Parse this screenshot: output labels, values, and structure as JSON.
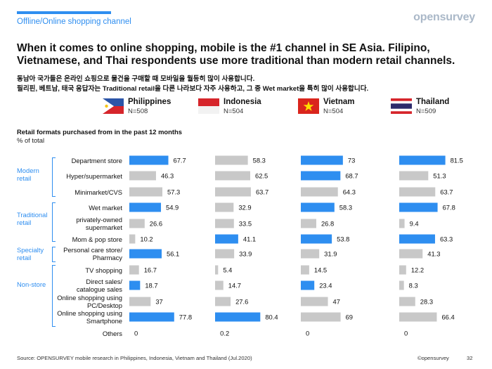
{
  "header": {
    "section": "Offline/Online shopping channel",
    "logo": "opensurvey",
    "headline": "When it comes to online shopping, mobile is the #1 channel in SE Asia. Filipino, Vietnamese, and Thai respondents use more traditional than modern retail channels.",
    "sub_line1": "동남아 국가들은 온라인 쇼핑으로 물건을 구매할 때 모바일을 월등히 많이 사용합니다.",
    "sub_line2": "필리핀, 베트남, 태국 응답자는 Traditional retail을 다른 나라보다 자주 사용하고, 그 중 Wet market을 특히 많이 사용합니다."
  },
  "countries": [
    {
      "name": "Philippines",
      "n": "N=508",
      "flag": "philippines-flag"
    },
    {
      "name": "Indonesia",
      "n": "N=504",
      "flag": "indonesia-flag"
    },
    {
      "name": "Vietnam",
      "n": "N=504",
      "flag": "vietnam-flag"
    },
    {
      "name": "Thailand",
      "n": "N=509",
      "flag": "thailand-flag"
    }
  ],
  "colors": {
    "accent": "#2e8ef0",
    "gray": "#c8c8c8"
  },
  "chart_data": {
    "type": "bar",
    "title": "Retail formats purchased from in the past 12 months",
    "subtitle": "% of total",
    "orientation": "horizontal",
    "groups": [
      {
        "label": "Modern retail",
        "rows": [
          0,
          1,
          2
        ]
      },
      {
        "label": "Traditional retail",
        "rows": [
          3,
          4,
          5
        ]
      },
      {
        "label": "Specialty retail",
        "rows": [
          6
        ]
      },
      {
        "label": "Non-store",
        "rows": [
          7,
          8,
          9,
          10,
          11
        ]
      }
    ],
    "categories": [
      "Department store",
      "Hyper/supermarket",
      "Minimarket/CVS",
      "Wet market",
      "privately-owned supermarket",
      "Mom & pop store",
      "Personal care store/ Pharmacy",
      "TV shopping",
      "Direct sales/ catalogue sales",
      "Online shopping using PC/Desktop",
      "Online shopping using Smartphone",
      "Others"
    ],
    "category_lines": [
      [
        "Department store"
      ],
      [
        "Hyper/supermarket"
      ],
      [
        "Minimarket/CVS"
      ],
      [
        "Wet market"
      ],
      [
        "privately-owned",
        "supermarket"
      ],
      [
        "Mom & pop store"
      ],
      [
        "Personal care store/",
        "Pharmacy"
      ],
      [
        "TV shopping"
      ],
      [
        "Direct sales/",
        "catalogue sales"
      ],
      [
        "Online shopping using",
        "PC/Desktop"
      ],
      [
        "Online shopping using",
        "Smartphone"
      ],
      [
        "Others"
      ]
    ],
    "series": [
      {
        "name": "Philippines",
        "values": [
          67.7,
          46.3,
          57.3,
          54.9,
          26.6,
          10.2,
          56.1,
          16.7,
          18.7,
          37,
          77.8,
          0
        ],
        "labels": [
          "67.7",
          "46.3",
          "57.3",
          "54.9",
          "26.6",
          "10.2",
          "56.1",
          "16.7",
          "18.7",
          "37",
          "77.8",
          "0"
        ],
        "highlight": [
          0,
          3,
          6,
          8,
          10
        ]
      },
      {
        "name": "Indonesia",
        "values": [
          58.3,
          62.5,
          63.7,
          32.9,
          33.5,
          41.1,
          33.9,
          5.4,
          14.7,
          27.6,
          80.4,
          0.2
        ],
        "labels": [
          "58.3",
          "62.5",
          "63.7",
          "32.9",
          "33.5",
          "41.1",
          "33.9",
          "5.4",
          "14.7",
          "27.6",
          "80.4",
          "0.2"
        ],
        "highlight": [
          5,
          10
        ]
      },
      {
        "name": "Vietnam",
        "values": [
          73,
          68.7,
          64.3,
          58.3,
          26.8,
          53.8,
          31.9,
          14.5,
          23.4,
          47,
          69,
          0
        ],
        "labels": [
          "73",
          "68.7",
          "64.3",
          "58.3",
          "26.8",
          "53.8",
          "31.9",
          "14.5",
          "23.4",
          "47",
          "69",
          "0"
        ],
        "highlight": [
          0,
          1,
          3,
          5,
          8
        ]
      },
      {
        "name": "Thailand",
        "values": [
          81.5,
          51.3,
          63.7,
          67.8,
          9.4,
          63.3,
          41.3,
          12.2,
          8.3,
          28.3,
          66.4,
          0
        ],
        "labels": [
          "81.5",
          "51.3",
          "63.7",
          "67.8",
          "9.4",
          "63.3",
          "41.3",
          "12.2",
          "8.3",
          "28.3",
          "66.4",
          "0"
        ],
        "highlight": [
          0,
          3,
          5
        ]
      }
    ]
  },
  "footer": {
    "source": "Source: OPENSURVEY mobile research in Philippines, Indonesia, Vietnam and Thailand (Jul.2020)",
    "copyright": "©opensurvey",
    "page": "32"
  }
}
